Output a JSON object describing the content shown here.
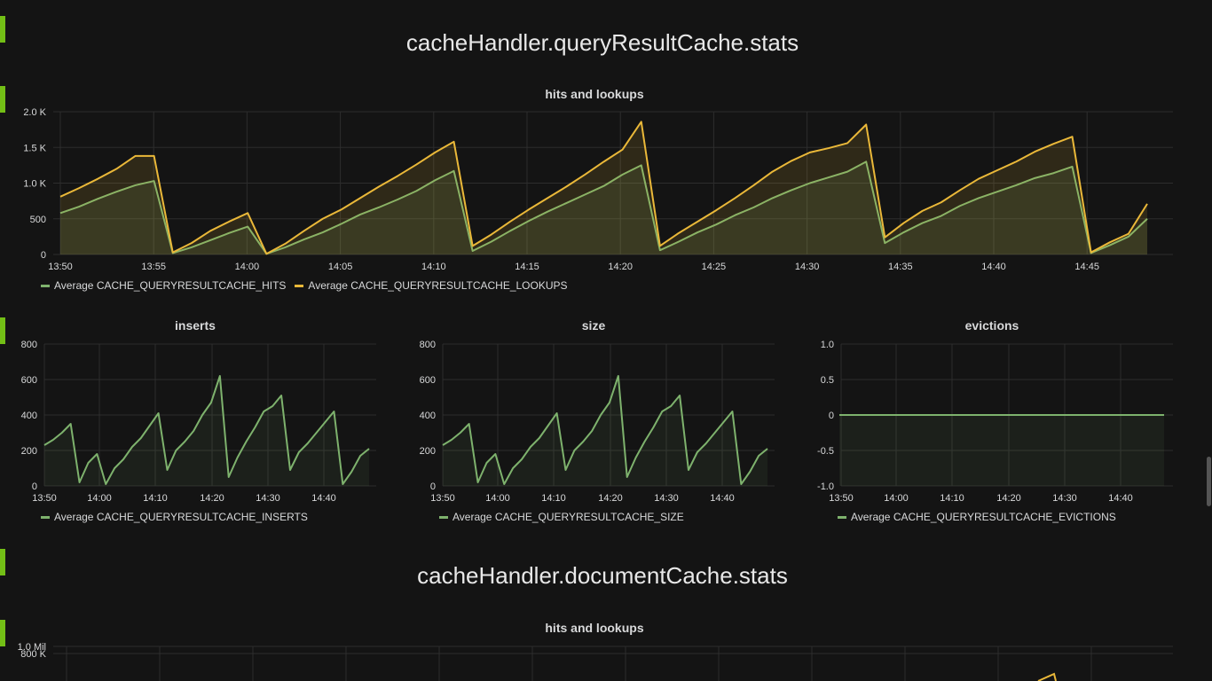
{
  "sections": [
    {
      "title": "cacheHandler.queryResultCache.stats"
    },
    {
      "title": "cacheHandler.documentCache.stats"
    }
  ],
  "colors": {
    "hits": "#7eb26d",
    "lookups": "#eab839",
    "grid": "#2d2d2d",
    "background": "#141414"
  },
  "panels": {
    "qrc_hits": {
      "title": "hits and lookups"
    },
    "qrc_inserts": {
      "title": "inserts"
    },
    "qrc_size": {
      "title": "size"
    },
    "qrc_evictions": {
      "title": "evictions"
    },
    "doc_hits": {
      "title": "hits and lookups"
    }
  },
  "chart_data": [
    {
      "id": "qrc_hits",
      "type": "area",
      "title": "hits and lookups",
      "x_ticks": [
        "13:50",
        "13:55",
        "14:00",
        "14:05",
        "14:10",
        "14:15",
        "14:20",
        "14:25",
        "14:30",
        "14:35",
        "14:40",
        "14:45"
      ],
      "y_ticks": [
        "0",
        "500",
        "1.0 K",
        "1.5 K",
        "2.0 K"
      ],
      "ylim": [
        0,
        2000
      ],
      "xlim": [
        0,
        58
      ],
      "series": [
        {
          "name": "Average CACHE_QUERYRESULTCACHE_HITS",
          "color": "#7eb26d",
          "x": [
            0,
            1,
            2,
            3,
            4,
            5,
            6,
            7,
            8,
            9,
            10,
            11,
            12,
            13,
            14,
            15,
            16,
            17,
            18,
            19,
            20,
            21,
            22,
            23,
            24,
            25,
            26,
            27,
            28,
            29,
            30,
            31,
            32,
            33,
            34,
            35,
            36,
            37,
            38,
            39,
            40,
            41,
            42,
            43,
            44,
            45,
            46,
            47,
            48,
            49,
            50,
            51,
            52,
            53,
            54,
            55,
            56,
            57,
            58
          ],
          "y": [
            580,
            670,
            780,
            880,
            970,
            1030,
            20,
            100,
            200,
            300,
            390,
            10,
            100,
            210,
            310,
            430,
            560,
            660,
            770,
            890,
            1040,
            1170,
            50,
            180,
            330,
            470,
            600,
            720,
            840,
            960,
            1120,
            1250,
            60,
            180,
            310,
            420,
            550,
            660,
            790,
            900,
            1000,
            1080,
            1160,
            1300,
            160,
            310,
            440,
            540,
            680,
            790,
            880,
            970,
            1070,
            1140,
            1230,
            20,
            130,
            250,
            500
          ]
        },
        {
          "name": "Average CACHE_QUERYRESULTCACHE_LOOKUPS",
          "color": "#eab839",
          "x": [
            0,
            1,
            2,
            3,
            4,
            5,
            6,
            7,
            8,
            9,
            10,
            11,
            12,
            13,
            14,
            15,
            16,
            17,
            18,
            19,
            20,
            21,
            22,
            23,
            24,
            25,
            26,
            27,
            28,
            29,
            30,
            31,
            32,
            33,
            34,
            35,
            36,
            37,
            38,
            39,
            40,
            41,
            42,
            43,
            44,
            45,
            46,
            47,
            48,
            49,
            50,
            51,
            52,
            53,
            54,
            55,
            56,
            57,
            58
          ],
          "y": [
            810,
            930,
            1060,
            1200,
            1380,
            1380,
            30,
            160,
            330,
            460,
            580,
            10,
            150,
            330,
            500,
            630,
            790,
            950,
            1100,
            1260,
            1430,
            1580,
            120,
            280,
            460,
            630,
            790,
            950,
            1120,
            1300,
            1470,
            1860,
            120,
            300,
            460,
            620,
            790,
            970,
            1160,
            1310,
            1430,
            1490,
            1560,
            1820,
            240,
            440,
            610,
            730,
            900,
            1060,
            1180,
            1300,
            1440,
            1550,
            1650,
            30,
            170,
            290,
            710
          ]
        }
      ]
    },
    {
      "id": "qrc_inserts",
      "type": "area",
      "title": "inserts",
      "x_ticks": [
        "13:50",
        "14:00",
        "14:10",
        "14:20",
        "14:30",
        "14:40"
      ],
      "y_ticks": [
        "0",
        "200",
        "400",
        "600",
        "800"
      ],
      "ylim": [
        0,
        800
      ],
      "series": [
        {
          "name": "Average CACHE_QUERYRESULTCACHE_INSERTS",
          "color": "#7eb26d",
          "y": [
            230,
            260,
            300,
            350,
            20,
            130,
            180,
            10,
            100,
            150,
            220,
            270,
            340,
            410,
            90,
            200,
            250,
            310,
            400,
            470,
            620,
            50,
            160,
            250,
            330,
            420,
            450,
            510,
            90,
            190,
            240,
            300,
            360,
            420,
            10,
            80,
            170,
            210
          ]
        }
      ]
    },
    {
      "id": "qrc_size",
      "type": "area",
      "title": "size",
      "x_ticks": [
        "13:50",
        "14:00",
        "14:10",
        "14:20",
        "14:30",
        "14:40"
      ],
      "y_ticks": [
        "0",
        "200",
        "400",
        "600",
        "800"
      ],
      "ylim": [
        0,
        800
      ],
      "series": [
        {
          "name": "Average CACHE_QUERYRESULTCACHE_SIZE",
          "color": "#7eb26d",
          "y": [
            230,
            260,
            300,
            350,
            20,
            130,
            180,
            10,
            100,
            150,
            220,
            270,
            340,
            410,
            90,
            200,
            250,
            310,
            400,
            470,
            620,
            50,
            160,
            250,
            330,
            420,
            450,
            510,
            90,
            190,
            240,
            300,
            360,
            420,
            10,
            80,
            170,
            210
          ]
        }
      ]
    },
    {
      "id": "qrc_evictions",
      "type": "line",
      "title": "evictions",
      "x_ticks": [
        "13:50",
        "14:00",
        "14:10",
        "14:20",
        "14:30",
        "14:40"
      ],
      "y_ticks": [
        "-1.0",
        "-0.5",
        "0",
        "0.5",
        "1.0"
      ],
      "ylim": [
        -1,
        1
      ],
      "series": [
        {
          "name": "Average CACHE_QUERYRESULTCACHE_EVICTIONS",
          "color": "#7eb26d",
          "y": [
            0,
            0
          ]
        }
      ]
    },
    {
      "id": "doc_hits",
      "type": "area",
      "title": "hits and lookups",
      "y_ticks": [
        "800 K",
        "1.0 Mil"
      ],
      "ylim": [
        0,
        1000000
      ]
    }
  ],
  "legends": {
    "qrc_hits": [
      "Average CACHE_QUERYRESULTCACHE_HITS",
      "Average CACHE_QUERYRESULTCACHE_LOOKUPS"
    ],
    "qrc_inserts": [
      "Average CACHE_QUERYRESULTCACHE_INSERTS"
    ],
    "qrc_size": [
      "Average CACHE_QUERYRESULTCACHE_SIZE"
    ],
    "qrc_evictions": [
      "Average CACHE_QUERYRESULTCACHE_EVICTIONS"
    ]
  }
}
